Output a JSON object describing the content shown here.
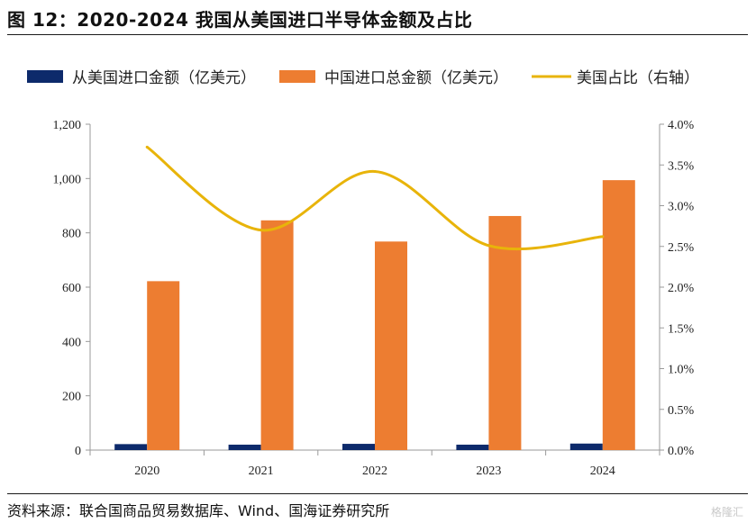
{
  "header": {
    "title": "图 12：2020-2024 我国从美国进口半导体金额及占比"
  },
  "footer": {
    "source": "资料来源：联合国商品贸易数据库、Wind、国海证券研究所",
    "watermark": "格隆汇"
  },
  "chart_data": {
    "type": "bar",
    "categories": [
      "2020",
      "2021",
      "2022",
      "2023",
      "2024"
    ],
    "series": [
      {
        "name": "从美国进口金额（亿美元）",
        "type": "bar",
        "axis": "left",
        "color": "#0d2a6b",
        "values": [
          22,
          20,
          23,
          20,
          24
        ]
      },
      {
        "name": "中国进口总金额（亿美元）",
        "type": "bar",
        "axis": "left",
        "color": "#ed7d31",
        "values": [
          622,
          846,
          768,
          862,
          994
        ]
      },
      {
        "name": "美国占比（右轴）",
        "type": "line",
        "axis": "right",
        "color": "#e8b40a",
        "values": [
          3.72,
          2.7,
          3.42,
          2.51,
          2.62
        ]
      }
    ],
    "left_axis": {
      "min": 0,
      "max": 1200,
      "ticks": [
        "0",
        "200",
        "400",
        "600",
        "800",
        "1,000",
        "1,200"
      ]
    },
    "right_axis": {
      "min": 0,
      "max": 4.0,
      "ticks": [
        "0.0%",
        "0.5%",
        "1.0%",
        "1.5%",
        "2.0%",
        "2.5%",
        "3.0%",
        "3.5%",
        "4.0%"
      ]
    },
    "legend_position": "top",
    "grid": false
  }
}
